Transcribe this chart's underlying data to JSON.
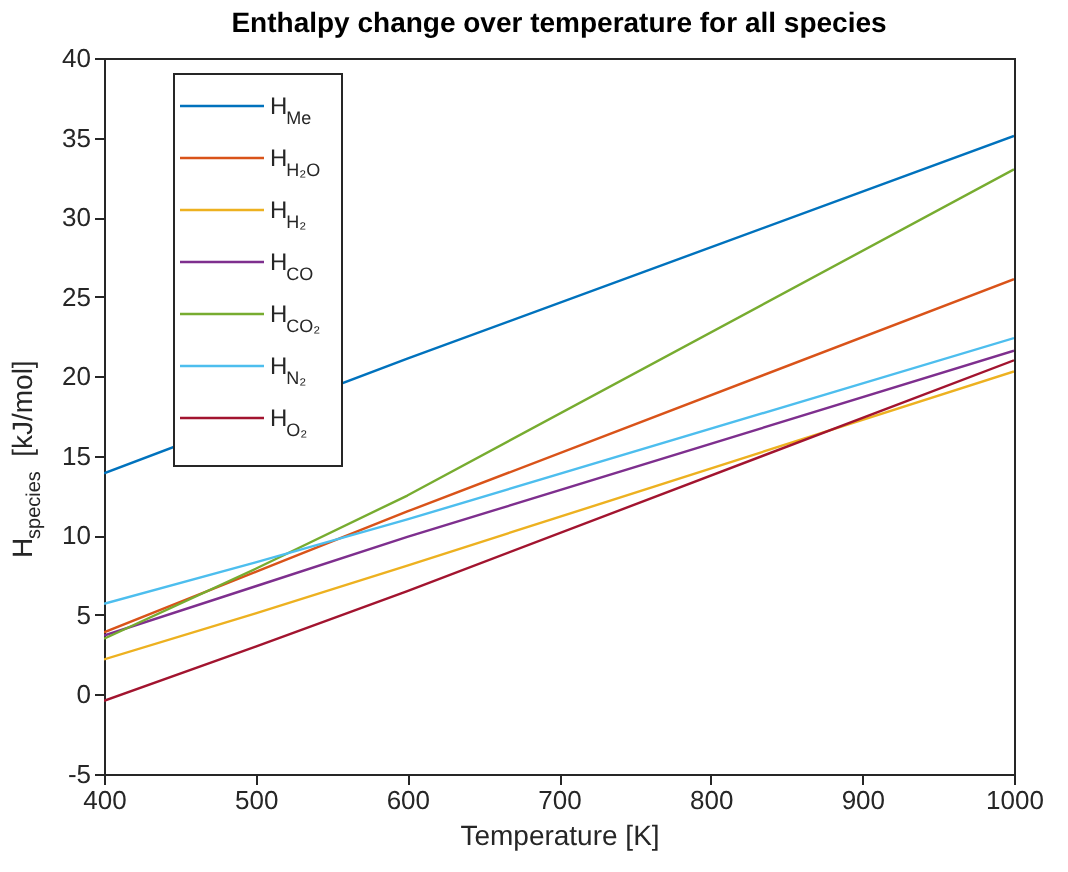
{
  "chart_data": {
    "type": "line",
    "title": "Enthalpy change over temperature for all species",
    "xlabel": "Temperature [K]",
    "ylabel": "H$_{species}$ [kJ/mol]",
    "x": [
      400,
      500,
      600,
      1000
    ],
    "series": [
      {
        "name": "H$_{Me}$",
        "color": "#0072bd",
        "values": [
          13.9,
          null,
          21.1,
          35.1
        ]
      },
      {
        "name": "H$_{H₂O}$",
        "color": "#d95319",
        "values": [
          3.9,
          7.7,
          11.5,
          26.1
        ]
      },
      {
        "name": "H$_{H₂}$",
        "color": "#edb120",
        "values": [
          2.2,
          5.1,
          8.1,
          20.3
        ]
      },
      {
        "name": "H$_{CO}$",
        "color": "#7e2f8e",
        "values": [
          3.7,
          6.8,
          9.9,
          21.6
        ]
      },
      {
        "name": "H$_{CO₂}$",
        "color": "#77ac30",
        "values": [
          3.5,
          7.9,
          12.5,
          33.0
        ]
      },
      {
        "name": "H$_{N₂}$",
        "color": "#4dbeee",
        "values": [
          5.7,
          8.3,
          11.0,
          22.4
        ]
      },
      {
        "name": "H$_{O₂}$",
        "color": "#a2142f",
        "values": [
          -0.4,
          3.0,
          6.5,
          21.0
        ]
      }
    ],
    "xlim": [
      400,
      1000
    ],
    "xticks": [
      400,
      500,
      600,
      700,
      800,
      900,
      1000
    ],
    "ylim": [
      -5,
      40
    ],
    "yticks": [
      -5,
      0,
      5,
      10,
      15,
      20,
      25,
      30,
      35,
      40
    ],
    "grid": false,
    "legend": "top left",
    "marker": "none",
    "line_style": "solid"
  }
}
